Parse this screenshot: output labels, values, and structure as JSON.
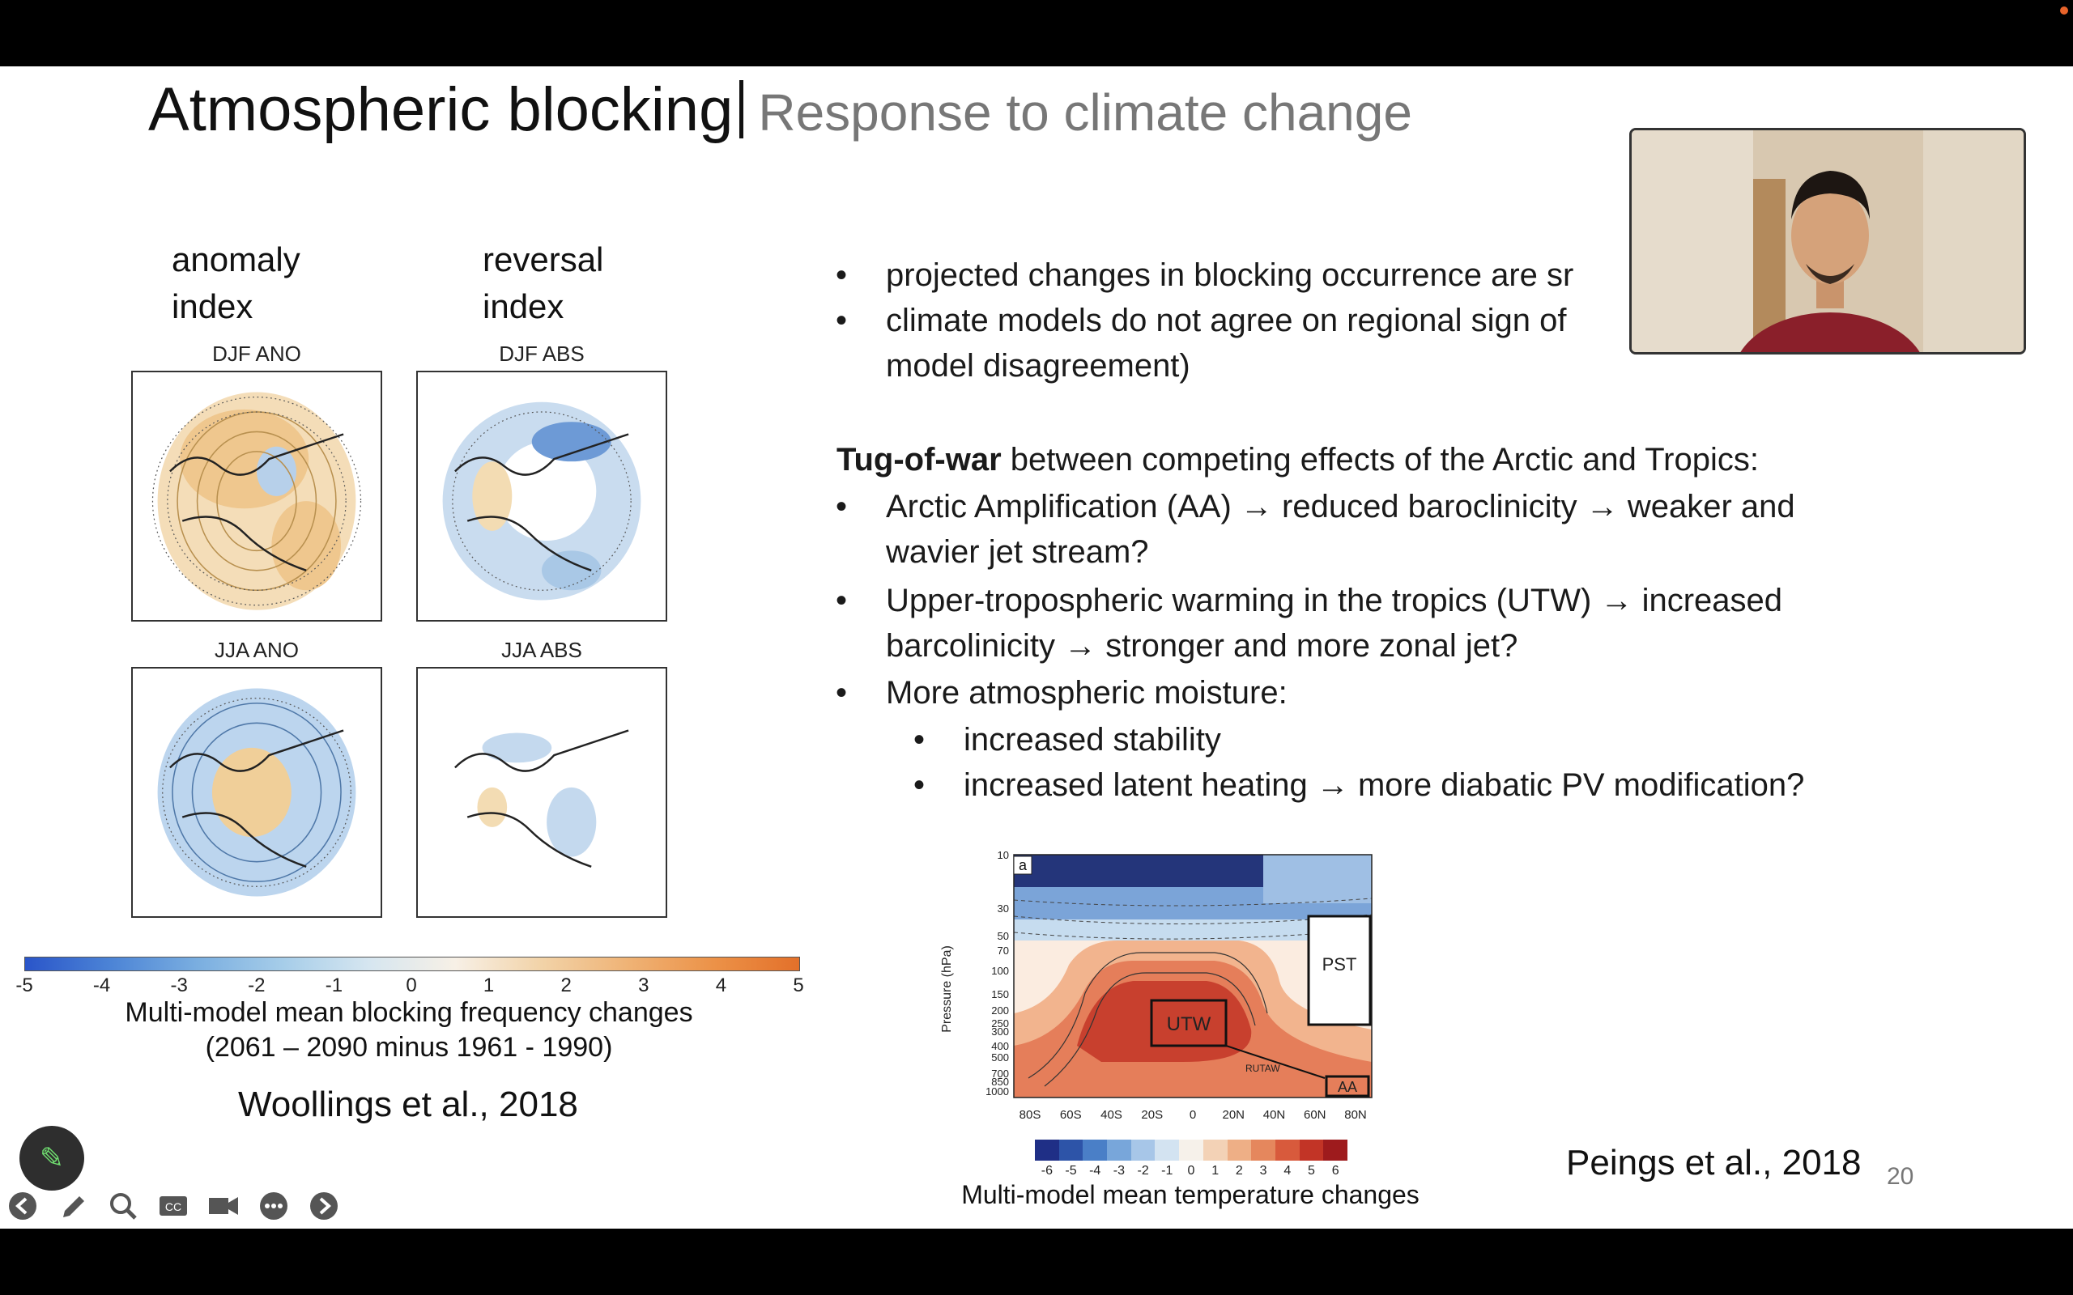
{
  "title": {
    "main": "Atmospheric blocking",
    "sub": "Response to climate change"
  },
  "index_labels": {
    "anomaly": [
      "anomaly",
      "index"
    ],
    "reversal": [
      "reversal",
      "index"
    ]
  },
  "maps": [
    {
      "label": "DJF ANO"
    },
    {
      "label": "DJF ABS"
    },
    {
      "label": "JJA ANO"
    },
    {
      "label": "JJA ABS"
    }
  ],
  "colorbar": {
    "ticks": [
      "-5",
      "-4",
      "-3",
      "-2",
      "-1",
      "0",
      "1",
      "2",
      "3",
      "4",
      "5"
    ]
  },
  "left_caption": {
    "line1": "Multi-model mean blocking frequency changes",
    "line2": "(2061 – 2090 minus 1961 - 1990)"
  },
  "left_cite": "Woollings et al., 2018",
  "bullets_top": [
    "projected changes in blocking occurrence are sr",
    "climate models do not agree on regional sign of",
    "model disagreement)"
  ],
  "tug": {
    "bold": "Tug-of-war",
    "rest": " between competing effects of the Arctic and Tropics:"
  },
  "bullets_main": [
    {
      "line1": "Arctic Amplification (AA) → reduced baroclinicity → weaker and",
      "line2": "wavier jet stream?"
    },
    {
      "line1": "Upper-tropospheric warming in the tropics (UTW) → increased",
      "line2": "barcolinicity → stronger and more zonal jet?"
    },
    {
      "line1": "More atmospheric moisture:",
      "line2": ""
    }
  ],
  "sub_bullets": [
    "increased stability",
    "increased latent heating → more diabatic PV modification?"
  ],
  "chart2": {
    "panel_label": "a",
    "ylabel": "Pressure (hPa)",
    "yticks": [
      "10",
      "30",
      "50",
      "70",
      "100",
      "150",
      "200",
      "250",
      "300",
      "400",
      "500",
      "700",
      "850",
      "1000"
    ],
    "xticks": [
      "80S",
      "60S",
      "40S",
      "20S",
      "0",
      "20N",
      "40N",
      "60N",
      "80N"
    ],
    "boxes": {
      "utw": "UTW",
      "pst": "PST",
      "aa": "AA",
      "rutaw": "RUTAW"
    },
    "cbar_ticks": [
      "-6",
      "-5",
      "-4",
      "-3",
      "-2",
      "-1",
      "0",
      "1",
      "2",
      "3",
      "4",
      "5",
      "6"
    ],
    "caption": "Multi-model mean temperature changes"
  },
  "right_cite": "Peings et al., 2018",
  "slide_number": "20",
  "toolbar": [
    "back-icon",
    "pen-icon",
    "zoom-icon",
    "captions-icon",
    "camera-icon",
    "more-icon",
    "forward-icon"
  ]
}
